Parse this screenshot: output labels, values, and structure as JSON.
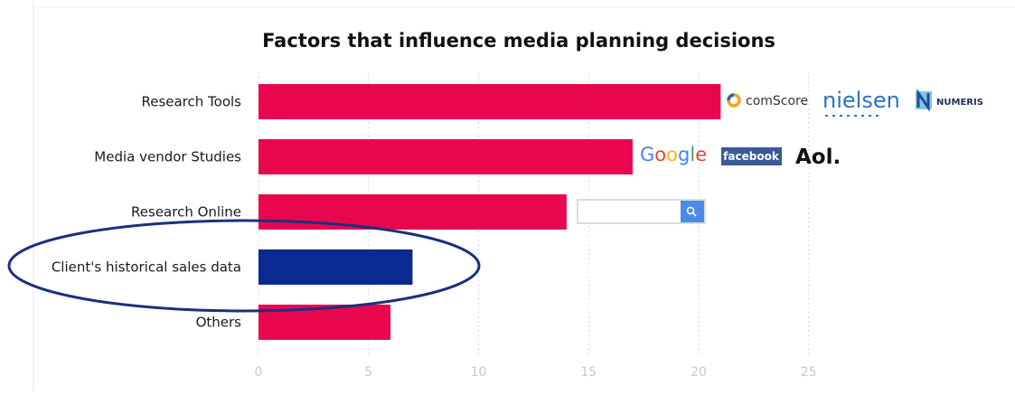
{
  "chart_data": {
    "type": "bar",
    "orientation": "horizontal",
    "title": "Factors that influence media planning decisions",
    "xlabel": "",
    "ylabel": "",
    "categories": [
      "Research Tools",
      "Media vendor Studies",
      "Research Online",
      "Client's historical sales data",
      "Others"
    ],
    "values": [
      21,
      17,
      14,
      7,
      6
    ],
    "xlim": [
      0,
      25
    ],
    "xticks": [
      "0",
      "5",
      "10",
      "15",
      "20",
      "25"
    ],
    "grid": "vertical",
    "legend": "none",
    "colors": {
      "bar": "#e8074f",
      "highlight_bar": "#0b2a91",
      "ellipse": "#1c2f7e",
      "grid": "#d9d9d9"
    },
    "highlight_index": 3
  },
  "annotations": {
    "comscore": "comScore",
    "nielsen": "nielsen",
    "numeris": "NUMERIS",
    "google": "Google",
    "facebook": "facebook",
    "aol": "Aol.",
    "search_icon": "magnifier-icon"
  }
}
